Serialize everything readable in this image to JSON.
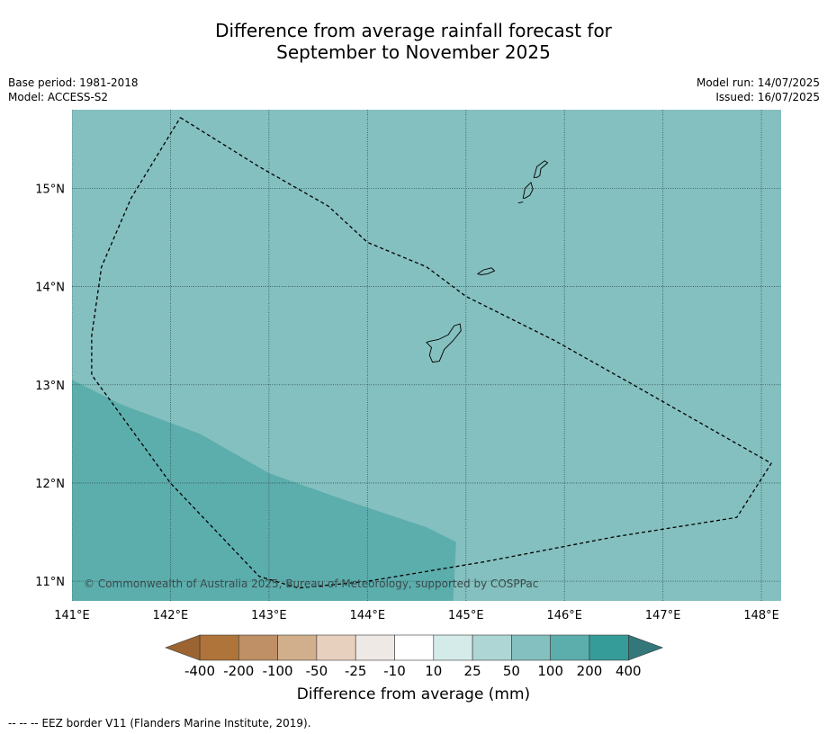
{
  "header": {
    "title_line1": "Difference from average rainfall forecast for",
    "title_line2": "September to November 2025",
    "base_period": "Base period: 1981-2018",
    "model": "Model: ACCESS-S2",
    "model_run": "Model run: 14/07/2025",
    "issued": "Issued: 16/07/2025"
  },
  "map": {
    "lon_ticks": [
      141,
      142,
      143,
      144,
      145,
      146,
      147,
      148
    ],
    "lat_ticks": [
      15,
      14,
      13,
      12,
      11
    ],
    "lon_labels": [
      "141°E",
      "142°E",
      "143°E",
      "144°E",
      "145°E",
      "146°E",
      "147°E",
      "148°E"
    ],
    "lat_labels": [
      "15°N",
      "14°N",
      "13°N",
      "12°N",
      "11°N"
    ],
    "extent": {
      "lon_min": 141.0,
      "lon_max": 148.2,
      "lat_min": 10.8,
      "lat_max": 15.8
    },
    "copyright": "© Commonwealth of Australia 2025, Bureau of Meteorology, supported by COSPPac",
    "background_color": "#84c0bf",
    "region_color": "#5caead",
    "region_category": "100 to 200",
    "background_category": "50 to 100",
    "region_boundary": [
      [
        141.0,
        13.05
      ],
      [
        141.5,
        12.8
      ],
      [
        142.3,
        12.5
      ],
      [
        143.0,
        12.1
      ],
      [
        143.7,
        11.85
      ],
      [
        144.3,
        11.65
      ],
      [
        144.6,
        11.55
      ],
      [
        144.9,
        11.4
      ],
      [
        144.87,
        10.8
      ],
      [
        141.0,
        10.8
      ]
    ],
    "eez_boundary": [
      [
        142.1,
        15.72
      ],
      [
        142.9,
        15.22
      ],
      [
        143.6,
        14.82
      ],
      [
        144.0,
        14.45
      ],
      [
        144.6,
        14.2
      ],
      [
        145.0,
        13.9
      ],
      [
        145.2,
        13.8
      ],
      [
        145.9,
        13.45
      ],
      [
        146.7,
        13.0
      ],
      [
        147.4,
        12.6
      ],
      [
        148.1,
        12.2
      ],
      [
        147.75,
        11.65
      ],
      [
        146.5,
        11.45
      ],
      [
        145.2,
        11.2
      ],
      [
        144.0,
        11.0
      ],
      [
        143.3,
        10.93
      ],
      [
        142.9,
        11.05
      ],
      [
        142.0,
        12.0
      ],
      [
        141.2,
        13.1
      ],
      [
        141.2,
        13.5
      ],
      [
        141.3,
        14.2
      ],
      [
        141.6,
        14.9
      ],
      [
        142.1,
        15.72
      ]
    ],
    "islands": [
      {
        "name": "Guam",
        "points": [
          [
            144.62,
            13.44
          ],
          [
            144.72,
            13.46
          ],
          [
            144.82,
            13.51
          ],
          [
            144.88,
            13.6
          ],
          [
            144.94,
            13.62
          ],
          [
            144.95,
            13.55
          ],
          [
            144.87,
            13.45
          ],
          [
            144.78,
            13.36
          ],
          [
            144.73,
            13.24
          ],
          [
            144.66,
            13.23
          ],
          [
            144.63,
            13.3
          ],
          [
            144.65,
            13.38
          ],
          [
            144.6,
            13.43
          ]
        ]
      },
      {
        "name": "Rota",
        "points": [
          [
            145.12,
            14.13
          ],
          [
            145.18,
            14.17
          ],
          [
            145.26,
            14.19
          ],
          [
            145.29,
            14.16
          ],
          [
            145.22,
            14.13
          ],
          [
            145.15,
            14.12
          ]
        ]
      },
      {
        "name": "Tinian",
        "points": [
          [
            145.58,
            14.9
          ],
          [
            145.6,
            15.0
          ],
          [
            145.66,
            15.06
          ],
          [
            145.68,
            14.99
          ],
          [
            145.65,
            14.93
          ],
          [
            145.6,
            14.9
          ]
        ]
      },
      {
        "name": "Saipan",
        "points": [
          [
            145.69,
            15.11
          ],
          [
            145.72,
            15.22
          ],
          [
            145.8,
            15.28
          ],
          [
            145.83,
            15.26
          ],
          [
            145.76,
            15.2
          ],
          [
            145.75,
            15.13
          ],
          [
            145.72,
            15.11
          ],
          [
            145.69,
            15.11
          ]
        ]
      },
      {
        "name": "Aguijan",
        "points": [
          [
            145.53,
            14.85
          ],
          [
            145.58,
            14.86
          ]
        ]
      }
    ]
  },
  "colorbar": {
    "labels": [
      "-400",
      "-200",
      "-100",
      "-50",
      "-25",
      "-10",
      "10",
      "25",
      "50",
      "100",
      "200",
      "400"
    ],
    "colors": [
      "#ae7439",
      "#bf9065",
      "#d2af8c",
      "#e8d0bf",
      "#efe9e5",
      "#ffffff",
      "#d5ebea",
      "#add6d5",
      "#84c0bf",
      "#5caead",
      "#359c9a"
    ],
    "under_color": "#9b6431",
    "over_color": "#33777a",
    "label": "Difference from average (mm)"
  },
  "footer": {
    "legend_symbol": "--  --  --",
    "legend_text": "EEZ border V11 (Flanders Marine Institute, 2019)."
  }
}
